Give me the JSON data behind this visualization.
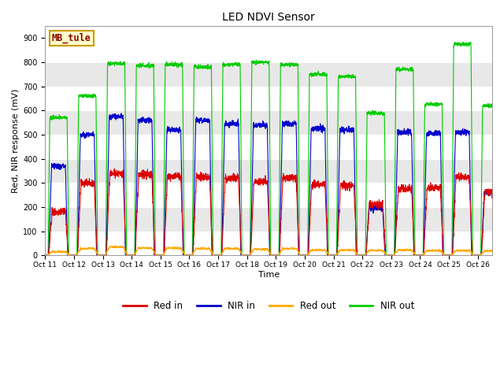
{
  "title": "LED NDVI Sensor",
  "xlabel": "Time",
  "ylabel": "Red, NIR response (mV)",
  "ylim": [
    0,
    950
  ],
  "yticks": [
    0,
    100,
    200,
    300,
    400,
    500,
    600,
    700,
    800,
    900
  ],
  "background_color": "#ffffff",
  "plot_bg_color": "#f0f0f0",
  "legend_label": "MB_tule",
  "legend_box_color": "#ffffcc",
  "legend_box_edge": "#cc9900",
  "colors": {
    "red_in": "#dd0000",
    "nir_in": "#0000cc",
    "red_out": "#ffaa00",
    "nir_out": "#00cc00"
  },
  "x_tick_labels": [
    "Oct 11",
    "Oct 12",
    "Oct 13",
    "Oct 14",
    "Oct 15",
    "Oct 16",
    "Oct 17",
    "Oct 18",
    "Oct 19",
    "Oct 20",
    "Oct 21",
    "Oct 22",
    "Oct 23",
    "Oct 24",
    "Oct 25",
    "Oct 26"
  ],
  "cycle_data": {
    "red_in": [
      180,
      300,
      340,
      335,
      330,
      325,
      320,
      305,
      320,
      295,
      290,
      210,
      275,
      280,
      325,
      260
    ],
    "nir_in": [
      370,
      500,
      575,
      560,
      520,
      560,
      545,
      540,
      545,
      525,
      520,
      195,
      510,
      505,
      510,
      260
    ],
    "red_out": [
      15,
      28,
      35,
      30,
      30,
      28,
      28,
      25,
      28,
      22,
      22,
      20,
      22,
      20,
      20,
      18
    ],
    "nir_out": [
      570,
      660,
      795,
      785,
      790,
      780,
      790,
      800,
      790,
      750,
      740,
      590,
      770,
      625,
      875,
      620
    ]
  }
}
